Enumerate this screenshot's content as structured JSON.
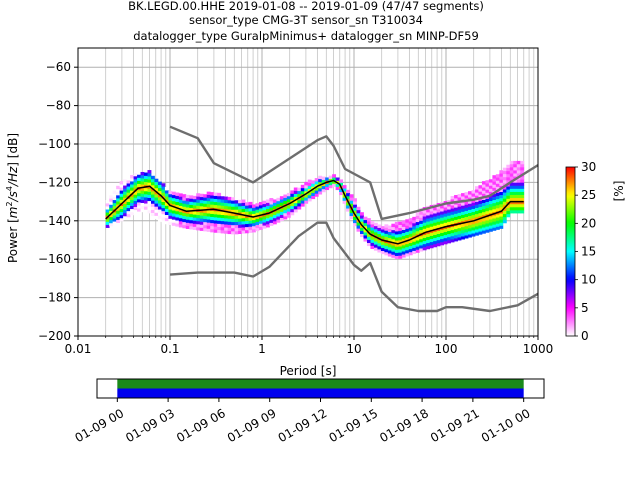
{
  "chart_data": [
    {
      "type": "heatmap",
      "title_lines": [
        "BK.LEGD.00.HHE   2019-01-08 -- 2019-01-09  (47/47 segments)",
        "sensor_type CMG-3T sensor_sn T310034",
        "datalogger_type GuralpMinimus+ datalogger_sn MINP-DF59"
      ],
      "xlabel": "Period [s]",
      "ylabel_parts": {
        "a": "Power [",
        "b": "m",
        "c": "2",
        "d": "/",
        "e": "s",
        "f": "4",
        "g": "/Hz",
        "h": "] [dB]"
      },
      "x_scale": "log",
      "xlim": [
        0.01,
        1000
      ],
      "ylim": [
        -200,
        -50
      ],
      "x_ticks": [
        {
          "value": 0.01,
          "label": "0.01"
        },
        {
          "value": 0.1,
          "label": "0.1"
        },
        {
          "value": 1,
          "label": "1"
        },
        {
          "value": 10,
          "label": "10"
        },
        {
          "value": 100,
          "label": "100"
        },
        {
          "value": 1000,
          "label": "1000"
        }
      ],
      "y_ticks": [
        {
          "value": -60,
          "label": "−60"
        },
        {
          "value": -80,
          "label": "−80"
        },
        {
          "value": -100,
          "label": "−100"
        },
        {
          "value": -120,
          "label": "−120"
        },
        {
          "value": -140,
          "label": "−140"
        },
        {
          "value": -160,
          "label": "−160"
        },
        {
          "value": -180,
          "label": "−180"
        },
        {
          "value": -200,
          "label": "−200"
        }
      ],
      "grid": true,
      "colorbar": {
        "label": "[%]",
        "range": [
          0,
          30
        ],
        "ticks": [
          {
            "value": 0,
            "label": "0"
          },
          {
            "value": 5,
            "label": "5"
          },
          {
            "value": 10,
            "label": "10"
          },
          {
            "value": 15,
            "label": "15"
          },
          {
            "value": 20,
            "label": "20"
          },
          {
            "value": 25,
            "label": "25"
          },
          {
            "value": 30,
            "label": "30"
          }
        ],
        "stops": [
          "#ffffff",
          "#ff00ff",
          "#0000ff",
          "#00ffff",
          "#00ff00",
          "#ffff00",
          "#ff0000"
        ]
      },
      "series": [
        {
          "values_x": [
            0.1,
            0.2,
            0.3,
            0.8,
            4.0,
            5.0,
            6.0,
            8.0,
            15.0,
            20.0,
            40.0,
            100.0,
            200.0,
            300.0,
            500.0,
            1000.0
          ],
          "values_y": [
            -91,
            -97,
            -110,
            -120,
            -98,
            -96,
            -101,
            -113,
            -120,
            -139,
            -136,
            -131,
            -129,
            -127,
            -120,
            -111
          ],
          "color": "#6e6e6e"
        },
        {
          "values_x": [
            0.1,
            0.2,
            0.5,
            0.8,
            1.2,
            2.5,
            4.0,
            5.0,
            6.0,
            10.0,
            12.0,
            15.0,
            20.0,
            30.0,
            50.0,
            80.0,
            100.0,
            150.0,
            300.0,
            600.0,
            1000.0
          ],
          "values_y": [
            -168,
            -167,
            -167,
            -169,
            -164,
            -148,
            -141,
            -141,
            -149,
            -163,
            -166,
            -162,
            -177,
            -185,
            -187,
            -187,
            -185,
            -185,
            -187,
            -184,
            -178
          ],
          "color": "#6e6e6e"
        },
        {
          "values_x": [
            0.02,
            0.03,
            0.045,
            0.06,
            0.08,
            0.1,
            0.15,
            0.3,
            0.5,
            0.8,
            1.2,
            2.0,
            3.0,
            4.0,
            5.0,
            6.0,
            7.0,
            8.0,
            10.0,
            12.0,
            15.0,
            20.0,
            30.0,
            40.0,
            60.0,
            100.0,
            200.0,
            400.0,
            500.0,
            700.0
          ],
          "values_y": [
            -139,
            -131,
            -123,
            -122,
            -127,
            -132,
            -135,
            -134,
            -136,
            -138,
            -136,
            -131,
            -126,
            -122,
            -120,
            -119,
            -121,
            -127,
            -136,
            -142,
            -147,
            -150,
            -152,
            -150,
            -146,
            -143,
            -140,
            -135,
            -130,
            -130
          ],
          "color": "#000000"
        }
      ],
      "density_band": {
        "x": [
          0.02,
          0.03,
          0.045,
          0.06,
          0.08,
          0.1,
          0.15,
          0.3,
          0.5,
          0.8,
          1.2,
          2.0,
          3.0,
          4.0,
          5.0,
          6.0,
          7.0,
          8.0,
          10.0,
          12.0,
          15.0,
          20.0,
          30.0,
          40.0,
          60.0,
          100.0,
          200.0,
          400.0,
          500.0,
          700.0
        ],
        "upper": [
          -132,
          -120,
          -115,
          -115,
          -121,
          -125,
          -128,
          -126,
          -129,
          -132,
          -130,
          -126,
          -121,
          -118,
          -118,
          -117,
          -119,
          -122,
          -129,
          -136,
          -141,
          -143,
          -142,
          -140,
          -133,
          -130,
          -124,
          -115,
          -110,
          -110
        ],
        "lower": [
          -144,
          -140,
          -135,
          -136,
          -141,
          -142,
          -144,
          -146,
          -147,
          -146,
          -143,
          -138,
          -131,
          -127,
          -124,
          -122,
          -125,
          -132,
          -142,
          -148,
          -154,
          -157,
          -160,
          -158,
          -155,
          -152,
          -148,
          -144,
          -136,
          -136
        ]
      }
    },
    {
      "type": "timeline",
      "x_ticks": [
        {
          "value": 0,
          "label": "01-09 00"
        },
        {
          "value": 3,
          "label": "01-09 03"
        },
        {
          "value": 6,
          "label": "01-09 06"
        },
        {
          "value": 9,
          "label": "01-09 09"
        },
        {
          "value": 12,
          "label": "01-09 12"
        },
        {
          "value": 15,
          "label": "01-09 15"
        },
        {
          "value": 18,
          "label": "01-09 18"
        },
        {
          "value": 21,
          "label": "01-09 21"
        },
        {
          "value": 24,
          "label": "01-10 00"
        }
      ],
      "xlim": [
        -1.2,
        25.2
      ],
      "bands": [
        {
          "start": 0,
          "end": 24,
          "color": "#1a8a1a"
        },
        {
          "start": 0,
          "end": 24,
          "color": "#0000ee"
        }
      ]
    }
  ]
}
